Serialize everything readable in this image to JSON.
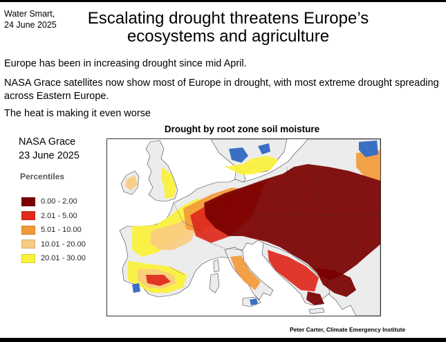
{
  "header": {
    "source": "Water Smart,",
    "date": "24 June 2025",
    "title": "Escalating drought threatens Europe’s ecosystems and agriculture"
  },
  "paragraphs": [
    "Europe has been in increasing drought since mid April.",
    "NASA Grace satellites now show  most of Europe in drought, with most extreme drought spreading across Eastern Europe.",
    "The heat is making it even worse"
  ],
  "satellite": {
    "name": "NASA Grace",
    "date": "23 June 2025"
  },
  "map": {
    "title": "Drought by root zone soil moisture",
    "water_color": "#ffffff",
    "land_color": "#f2f2f2",
    "wet_color": "#3a6fc4"
  },
  "legend": {
    "title": "Percentiles",
    "items": [
      {
        "label": "0.00 - 2.00",
        "color": "#7a0000"
      },
      {
        "label": "2.01 - 5.00",
        "color": "#e0281c"
      },
      {
        "label": "5.01 - 10.00",
        "color": "#f29a3a"
      },
      {
        "label": "10.01 - 20.00",
        "color": "#f8cc80"
      },
      {
        "label": "20.01 - 30.00",
        "color": "#fbf13a"
      }
    ]
  },
  "credit": "Peter Carter,  Climate Emergency Institute"
}
